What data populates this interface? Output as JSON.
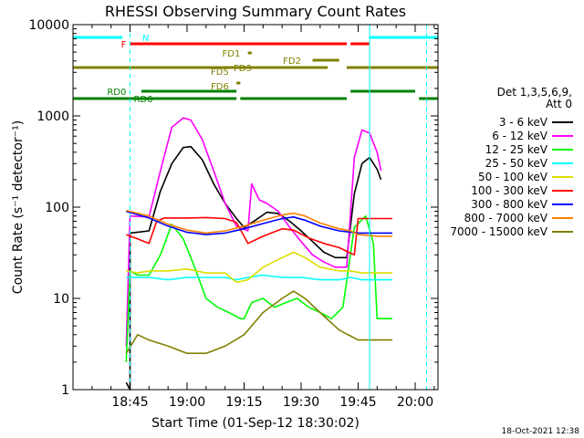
{
  "chart_data": {
    "type": "line",
    "title": "RHESSI Observing Summary Count Rates",
    "xlabel": "Start Time (01-Sep-12 18:30:02)",
    "ylabel": "Count Rate (s⁻¹ detector⁻¹)",
    "x_unit": "minutes of day",
    "xlim": [
      "18:30",
      "20:06"
    ],
    "ylim": [
      1,
      10000
    ],
    "yscale": "log",
    "x_ticks": [
      "18:45",
      "19:00",
      "19:15",
      "19:30",
      "19:45",
      "20:00"
    ],
    "y_ticks": [
      "1",
      "10",
      "100",
      "1000",
      "10000"
    ],
    "legend_header": "Det 1,3,5,6,9,",
    "legend_header2": "Att 0",
    "legend_position": "right",
    "timestamp": "18-Oct-2021 12:38",
    "series": [
      {
        "name": "3 - 6 keV",
        "color": "#000000",
        "points": [
          [
            "18:44",
            1.2
          ],
          [
            "18:45",
            1.0
          ],
          [
            "18:45",
            52
          ],
          [
            "18:50",
            55
          ],
          [
            "18:53",
            150
          ],
          [
            "18:56",
            300
          ],
          [
            "18:59",
            450
          ],
          [
            "19:01",
            460
          ],
          [
            "19:04",
            330
          ],
          [
            "19:07",
            180
          ],
          [
            "19:10",
            110
          ],
          [
            "19:13",
            75
          ],
          [
            "19:15",
            60
          ],
          [
            "19:18",
            72
          ],
          [
            "19:21",
            88
          ],
          [
            "19:24",
            85
          ],
          [
            "19:27",
            70
          ],
          [
            "19:30",
            55
          ],
          [
            "19:33",
            42
          ],
          [
            "19:36",
            32
          ],
          [
            "19:39",
            28
          ],
          [
            "19:42",
            28
          ],
          [
            "19:44",
            140
          ],
          [
            "19:46",
            300
          ],
          [
            "19:48",
            350
          ],
          [
            "19:50",
            260
          ],
          [
            "19:51",
            200
          ]
        ]
      },
      {
        "name": "6 - 12 keV",
        "color": "#ff00ff",
        "points": [
          [
            "18:44",
            3
          ],
          [
            "18:45",
            80
          ],
          [
            "18:50",
            78
          ],
          [
            "18:53",
            250
          ],
          [
            "18:56",
            750
          ],
          [
            "18:59",
            950
          ],
          [
            "19:01",
            900
          ],
          [
            "19:04",
            550
          ],
          [
            "19:07",
            250
          ],
          [
            "19:10",
            110
          ],
          [
            "19:13",
            62
          ],
          [
            "19:16",
            55
          ],
          [
            "19:17",
            180
          ],
          [
            "19:19",
            120
          ],
          [
            "19:21",
            110
          ],
          [
            "19:24",
            90
          ],
          [
            "19:27",
            60
          ],
          [
            "19:30",
            42
          ],
          [
            "19:33",
            30
          ],
          [
            "19:36",
            25
          ],
          [
            "19:39",
            22
          ],
          [
            "19:42",
            22
          ],
          [
            "19:44",
            350
          ],
          [
            "19:46",
            700
          ],
          [
            "19:48",
            650
          ],
          [
            "19:50",
            400
          ],
          [
            "19:51",
            250
          ]
        ]
      },
      {
        "name": "12 - 25 keV",
        "color": "#00ff00",
        "points": [
          [
            "18:44",
            2
          ],
          [
            "18:45",
            20
          ],
          [
            "18:47",
            18
          ],
          [
            "18:50",
            18
          ],
          [
            "18:53",
            30
          ],
          [
            "18:56",
            65
          ],
          [
            "18:59",
            45
          ],
          [
            "19:02",
            22
          ],
          [
            "19:05",
            10
          ],
          [
            "19:08",
            8
          ],
          [
            "19:11",
            7
          ],
          [
            "19:14",
            6
          ],
          [
            "19:15",
            6
          ],
          [
            "19:17",
            9
          ],
          [
            "19:20",
            10
          ],
          [
            "19:23",
            8
          ],
          [
            "19:26",
            9
          ],
          [
            "19:29",
            10
          ],
          [
            "19:32",
            8
          ],
          [
            "19:35",
            7
          ],
          [
            "19:38",
            6
          ],
          [
            "19:41",
            8
          ],
          [
            "19:44",
            60
          ],
          [
            "19:47",
            80
          ],
          [
            "19:49",
            40
          ],
          [
            "19:50",
            6
          ],
          [
            "19:54",
            6
          ]
        ]
      },
      {
        "name": "25 - 50 keV",
        "color": "#00ffff",
        "points": [
          [
            "18:44",
            17
          ],
          [
            "18:50",
            17
          ],
          [
            "18:55",
            16
          ],
          [
            "19:00",
            17
          ],
          [
            "19:05",
            17
          ],
          [
            "19:10",
            17
          ],
          [
            "19:13",
            16
          ],
          [
            "19:16",
            17
          ],
          [
            "19:20",
            18
          ],
          [
            "19:25",
            17
          ],
          [
            "19:30",
            17
          ],
          [
            "19:35",
            16
          ],
          [
            "19:40",
            16
          ],
          [
            "19:43",
            17
          ],
          [
            "19:46",
            16
          ],
          [
            "19:50",
            16
          ],
          [
            "19:54",
            16
          ]
        ]
      },
      {
        "name": "50 - 100 keV",
        "color": "#dddd00",
        "points": [
          [
            "18:44",
            20
          ],
          [
            "18:47",
            19
          ],
          [
            "18:50",
            20
          ],
          [
            "18:55",
            20
          ],
          [
            "19:00",
            21
          ],
          [
            "19:05",
            19
          ],
          [
            "19:10",
            19
          ],
          [
            "19:13",
            15
          ],
          [
            "19:16",
            16
          ],
          [
            "19:20",
            22
          ],
          [
            "19:25",
            28
          ],
          [
            "19:28",
            32
          ],
          [
            "19:31",
            28
          ],
          [
            "19:35",
            22
          ],
          [
            "19:40",
            20
          ],
          [
            "19:43",
            20
          ],
          [
            "19:46",
            19
          ],
          [
            "19:50",
            19
          ],
          [
            "19:54",
            19
          ]
        ]
      },
      {
        "name": "100 - 300 keV",
        "color": "#ff0000",
        "points": [
          [
            "18:44",
            50
          ],
          [
            "18:47",
            45
          ],
          [
            "18:50",
            40
          ],
          [
            "18:52",
            70
          ],
          [
            "18:54",
            76
          ],
          [
            "19:00",
            76
          ],
          [
            "19:05",
            77
          ],
          [
            "19:10",
            75
          ],
          [
            "19:13",
            68
          ],
          [
            "19:16",
            40
          ],
          [
            "19:20",
            48
          ],
          [
            "19:25",
            58
          ],
          [
            "19:28",
            56
          ],
          [
            "19:32",
            46
          ],
          [
            "19:36",
            40
          ],
          [
            "19:40",
            36
          ],
          [
            "19:44",
            30
          ],
          [
            "19:45",
            75
          ],
          [
            "19:48",
            75
          ],
          [
            "19:51",
            75
          ],
          [
            "19:54",
            75
          ]
        ]
      },
      {
        "name": "300 - 800 keV",
        "color": "#0000ff",
        "points": [
          [
            "18:44",
            90
          ],
          [
            "18:50",
            76
          ],
          [
            "18:55",
            62
          ],
          [
            "19:00",
            53
          ],
          [
            "19:05",
            50
          ],
          [
            "19:10",
            52
          ],
          [
            "19:15",
            58
          ],
          [
            "19:20",
            66
          ],
          [
            "19:25",
            75
          ],
          [
            "19:28",
            78
          ],
          [
            "19:31",
            72
          ],
          [
            "19:35",
            62
          ],
          [
            "19:40",
            55
          ],
          [
            "19:45",
            52
          ],
          [
            "19:50",
            52
          ],
          [
            "19:54",
            52
          ]
        ]
      },
      {
        "name": "800 - 7000 keV",
        "color": "#ff8000",
        "points": [
          [
            "18:44",
            92
          ],
          [
            "18:50",
            80
          ],
          [
            "18:55",
            65
          ],
          [
            "19:00",
            56
          ],
          [
            "19:05",
            52
          ],
          [
            "19:10",
            55
          ],
          [
            "19:15",
            62
          ],
          [
            "19:20",
            72
          ],
          [
            "19:25",
            82
          ],
          [
            "19:28",
            86
          ],
          [
            "19:31",
            80
          ],
          [
            "19:35",
            67
          ],
          [
            "19:40",
            58
          ],
          [
            "19:43",
            55
          ],
          [
            "19:45",
            50
          ],
          [
            "19:50",
            48
          ],
          [
            "19:54",
            48
          ]
        ]
      },
      {
        "name": "7000 - 15000 keV",
        "color": "#808000",
        "points": [
          [
            "18:44",
            2.5
          ],
          [
            "18:47",
            4
          ],
          [
            "18:50",
            3.5
          ],
          [
            "18:55",
            3
          ],
          [
            "19:00",
            2.5
          ],
          [
            "19:05",
            2.5
          ],
          [
            "19:10",
            3
          ],
          [
            "19:15",
            4
          ],
          [
            "19:20",
            7
          ],
          [
            "19:25",
            10
          ],
          [
            "19:28",
            12
          ],
          [
            "19:31",
            10
          ],
          [
            "19:35",
            7
          ],
          [
            "19:40",
            4.5
          ],
          [
            "19:45",
            3.5
          ],
          [
            "19:50",
            3.5
          ],
          [
            "19:54",
            3.5
          ]
        ]
      }
    ],
    "flags": [
      {
        "label": "N",
        "color": "#00ffff",
        "segments": [
          [
            "18:30",
            "18:43"
          ],
          [
            "19:48",
            "20:06"
          ]
        ]
      },
      {
        "label": "F",
        "color": "#ff0000",
        "segments": [
          [
            "18:45",
            "19:42"
          ],
          [
            "19:43",
            "19:48"
          ]
        ]
      },
      {
        "label": "FD1",
        "color": "#808000",
        "segments": [
          [
            "19:16",
            "19:17"
          ]
        ]
      },
      {
        "label": "FD2",
        "color": "#808000",
        "segments": [
          [
            "19:33",
            "19:40"
          ]
        ]
      },
      {
        "label": "FD3",
        "color": "#808000",
        "segments": [
          [
            "18:30",
            "19:37"
          ],
          [
            "19:42",
            "20:06"
          ]
        ]
      },
      {
        "label": "FD5",
        "color": "#808000",
        "segments": []
      },
      {
        "label": "FD6",
        "color": "#808000",
        "segments": [
          [
            "19:13",
            "19:14"
          ]
        ]
      },
      {
        "label": "RD0",
        "color": "#008000",
        "segments": [
          [
            "18:48",
            "19:13"
          ],
          [
            "19:43",
            "20:00"
          ]
        ]
      },
      {
        "label": "RD6",
        "color": "#008000",
        "segments": [
          [
            "18:30",
            "19:13"
          ],
          [
            "19:14",
            "19:42"
          ],
          [
            "20:01",
            "20:06"
          ]
        ]
      }
    ],
    "vlines": [
      {
        "time": "18:30",
        "style": "solid",
        "color": "#00ffff"
      },
      {
        "time": "18:45",
        "style": "dashed",
        "color": "#00ffff"
      },
      {
        "time": "19:48",
        "style": "solid",
        "color": "#00ffff"
      },
      {
        "time": "20:03",
        "style": "dashed",
        "color": "#00ffff"
      }
    ]
  }
}
